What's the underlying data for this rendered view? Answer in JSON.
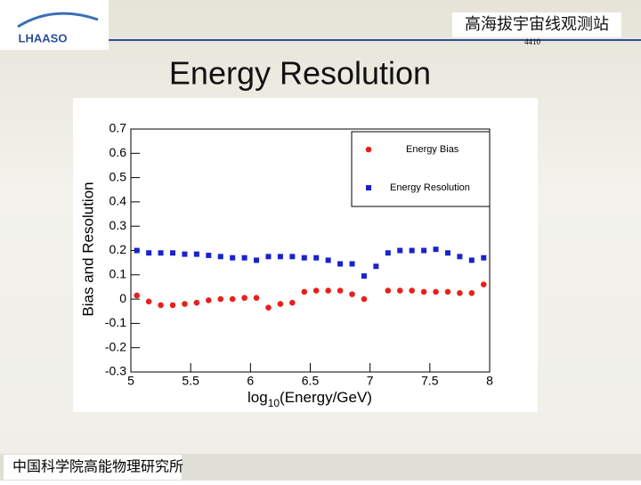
{
  "slide": {
    "logo": "LHAASO",
    "header_text": "高海拔宇宙线观测站",
    "page_number": "4410",
    "title": "Energy Resolution",
    "footer_text": "中国科学院高能物理研究所"
  },
  "chart_data": {
    "type": "scatter",
    "x_label": [
      "log",
      "10",
      "(Energy/GeV)"
    ],
    "y_label": "Bias and Resolution",
    "x": [
      5.05,
      5.15,
      5.25,
      5.35,
      5.45,
      5.55,
      5.65,
      5.75,
      5.85,
      5.95,
      6.05,
      6.15,
      6.25,
      6.35,
      6.45,
      6.55,
      6.65,
      6.75,
      6.85,
      6.95,
      7.05,
      7.15,
      7.25,
      7.35,
      7.45,
      7.55,
      7.65,
      7.75,
      7.85,
      7.95
    ],
    "series": [
      {
        "name": "Energy Bias",
        "color": "#e8201c",
        "marker": "circle",
        "values": [
          0.015,
          -0.01,
          -0.025,
          -0.025,
          -0.02,
          -0.015,
          -0.005,
          0,
          0,
          0.005,
          0.005,
          -0.035,
          -0.02,
          -0.015,
          0.03,
          0.035,
          0.035,
          0.035,
          0.02,
          0,
          null,
          0.035,
          0.035,
          0.035,
          0.03,
          0.03,
          0.03,
          0.025,
          0.025,
          0.06
        ]
      },
      {
        "name": "Energy Resolution",
        "color": "#1a22cc",
        "marker": "square",
        "values": [
          0.2,
          0.19,
          0.19,
          0.19,
          0.185,
          0.185,
          0.18,
          0.175,
          0.17,
          0.17,
          0.16,
          0.175,
          0.175,
          0.175,
          0.17,
          0.17,
          0.16,
          0.145,
          0.145,
          0.095,
          0.135,
          0.19,
          0.2,
          0.2,
          0.2,
          0.205,
          0.19,
          0.175,
          0.16,
          0.17
        ]
      }
    ],
    "xlim": [
      5,
      8
    ],
    "xticks": [
      5,
      5.5,
      6,
      6.5,
      7,
      7.5,
      8
    ],
    "ylim": [
      -0.3,
      0.7
    ],
    "yticks": [
      -0.3,
      -0.2,
      -0.1,
      0,
      0.1,
      0.2,
      0.3,
      0.4,
      0.5,
      0.6,
      0.7
    ],
    "legend": "upper-right"
  }
}
